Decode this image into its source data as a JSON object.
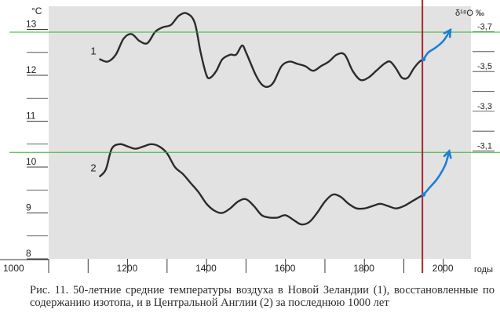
{
  "chart_data": {
    "type": "line",
    "title": "",
    "xlabel": "годы",
    "ylabel": "°C",
    "ylabel_right": "δ¹⁸O ‰",
    "xlim": [
      1000,
      2070
    ],
    "ylim": [
      8,
      13.3
    ],
    "right_ylim": [
      -3.74,
      -3.0
    ],
    "x_ticks": [
      1000,
      1200,
      1400,
      1600,
      1800,
      2000
    ],
    "y_ticks": [
      8,
      9,
      10,
      11,
      12,
      13
    ],
    "right_ticks": [
      -3.7,
      -3.5,
      -3.3,
      -3.1
    ],
    "grid": false,
    "legend": "none",
    "series": [
      {
        "name": "1",
        "x": [
          1130,
          1150,
          1170,
          1190,
          1210,
          1230,
          1250,
          1270,
          1290,
          1310,
          1330,
          1350,
          1370,
          1385,
          1400,
          1410,
          1425,
          1440,
          1460,
          1475,
          1490,
          1500,
          1510,
          1525,
          1540,
          1555,
          1570,
          1590,
          1610,
          1630,
          1650,
          1670,
          1690,
          1710,
          1730,
          1750,
          1770,
          1790,
          1810,
          1830,
          1850,
          1865,
          1880,
          1895,
          1910,
          1925,
          1940,
          1950
        ],
        "y": [
          12.35,
          12.3,
          12.45,
          12.8,
          12.9,
          12.75,
          12.7,
          12.95,
          13.05,
          13.1,
          13.3,
          13.35,
          13.15,
          12.5,
          12.0,
          11.95,
          12.1,
          12.35,
          12.45,
          12.45,
          12.65,
          12.5,
          12.3,
          12.0,
          11.8,
          11.75,
          11.85,
          12.2,
          12.3,
          12.25,
          12.2,
          12.1,
          12.2,
          12.3,
          12.45,
          12.45,
          12.1,
          11.9,
          11.95,
          12.1,
          12.25,
          12.3,
          12.15,
          11.95,
          11.95,
          12.15,
          12.3,
          12.35
        ]
      },
      {
        "name": "2",
        "x": [
          1130,
          1145,
          1160,
          1180,
          1200,
          1220,
          1240,
          1260,
          1280,
          1300,
          1320,
          1340,
          1360,
          1380,
          1400,
          1420,
          1440,
          1460,
          1480,
          1500,
          1520,
          1540,
          1560,
          1580,
          1600,
          1620,
          1640,
          1660,
          1680,
          1700,
          1720,
          1740,
          1760,
          1780,
          1800,
          1820,
          1840,
          1860,
          1880,
          1900,
          1920,
          1940,
          1950
        ],
        "y": [
          9.8,
          9.95,
          10.4,
          10.5,
          10.45,
          10.4,
          10.45,
          10.5,
          10.45,
          10.3,
          10.0,
          9.85,
          9.65,
          9.45,
          9.2,
          9.05,
          9.0,
          9.1,
          9.25,
          9.3,
          9.15,
          8.95,
          8.9,
          8.9,
          8.95,
          8.85,
          8.75,
          8.8,
          9.0,
          9.25,
          9.4,
          9.35,
          9.2,
          9.1,
          9.1,
          9.15,
          9.2,
          9.15,
          9.1,
          9.15,
          9.25,
          9.35,
          9.4
        ]
      }
    ],
    "series_labels": [
      "1",
      "2"
    ],
    "vertical_marker_year": 1947,
    "horizontal_reference_levels": [
      12.94,
      10.32
    ],
    "blue_extensions": [
      {
        "x": [
          1950,
          1962,
          1980,
          2000,
          2018
        ],
        "y": [
          12.35,
          12.5,
          12.6,
          12.75,
          12.99
        ]
      },
      {
        "x": [
          1950,
          1965,
          1985,
          2005,
          2015
        ],
        "y": [
          9.4,
          9.55,
          9.75,
          10.05,
          10.35
        ]
      }
    ],
    "colors": {
      "plot_bg": "#e2e2e2",
      "line": "#2b2b2b",
      "marker": "#a52a32",
      "reference": "#34b334",
      "extension": "#1c7fd8"
    }
  },
  "caption": "Рис. 11. 50-летние средние температуры воздуха в Новой Зеландии (1), восстановленные по содержанию изотопа, и в Центральной Англии (2) за последнюю 1000 лет"
}
